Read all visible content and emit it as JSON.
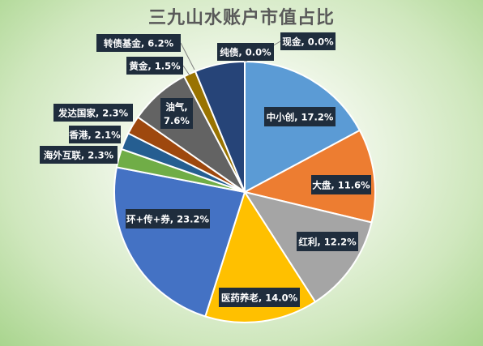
{
  "chart_data": {
    "type": "pie",
    "title": "三九山水账户市值占比",
    "slices": [
      {
        "name": "中小创",
        "value": 17.2,
        "pct": "17.2%",
        "color": "#5b9bd5"
      },
      {
        "name": "大盘",
        "value": 11.6,
        "pct": "11.6%",
        "color": "#ed7d31"
      },
      {
        "name": "红利",
        "value": 12.2,
        "pct": "12.2%",
        "color": "#a5a5a5"
      },
      {
        "name": "医药养老",
        "value": 14.0,
        "pct": "14.0%",
        "color": "#ffc000"
      },
      {
        "name": "环+传+券",
        "value": 23.2,
        "pct": "23.2%",
        "color": "#4472c4"
      },
      {
        "name": "海外互联",
        "value": 2.3,
        "pct": "2.3%",
        "color": "#70ad47"
      },
      {
        "name": "香港",
        "value": 2.1,
        "pct": "2.1%",
        "color": "#255e91"
      },
      {
        "name": "发达国家",
        "value": 2.3,
        "pct": "2.3%",
        "color": "#9e480e"
      },
      {
        "name": "油气",
        "value": 7.6,
        "pct": "7.6%",
        "color": "#636363"
      },
      {
        "name": "黄金",
        "value": 1.5,
        "pct": "1.5%",
        "color": "#997300"
      },
      {
        "name": "转债基金",
        "value": 6.2,
        "pct": "6.2%",
        "color": "#264478"
      },
      {
        "name": "纯债",
        "value": 0.0,
        "pct": "0.0%",
        "color": "#43682b"
      },
      {
        "name": "现金",
        "value": 0.0,
        "pct": "0.0%",
        "color": "#698ed0"
      }
    ]
  }
}
